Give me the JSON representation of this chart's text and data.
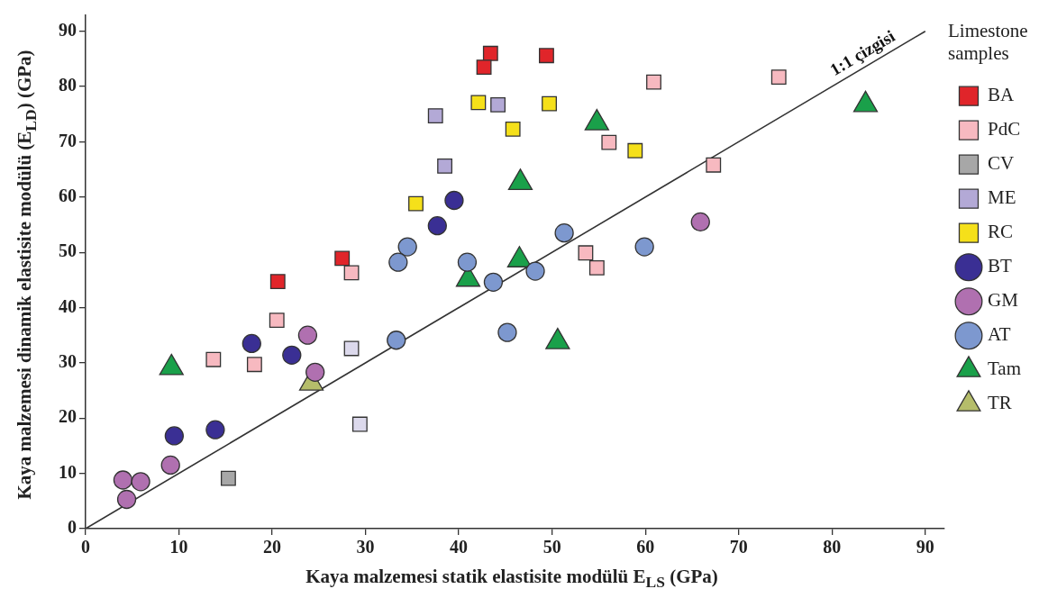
{
  "chart_data": {
    "type": "scatter",
    "xlabel": "Kaya malzemesi statik elastisite modülü E$_{LS}$ (GPa)",
    "ylabel": "Kaya malzemesi dinamik elastisite modülü (E$_{LD}$) (GPa)",
    "legend_title": "Limestone samples",
    "legend": "right",
    "grid": false,
    "xlim": [
      0,
      92
    ],
    "ylim": [
      0,
      93
    ],
    "xticks": [
      0,
      10,
      20,
      30,
      40,
      50,
      60,
      70,
      80,
      90
    ],
    "yticks": [
      0,
      10,
      20,
      30,
      40,
      50,
      60,
      70,
      80,
      90
    ],
    "annotations": [
      {
        "text": "1:1 çizgisi",
        "x": 84,
        "y": 84
      }
    ],
    "series": [
      {
        "type": "line",
        "marker": "none",
        "line_style": "solid",
        "color": "#333333",
        "x": [
          0,
          90
        ],
        "values": [
          0,
          90
        ]
      },
      {
        "name": "BA",
        "marker": "square",
        "color": "#e0252a",
        "x": [
          43.4,
          42.7,
          49.4,
          27.5,
          20.6
        ],
        "values": [
          86.0,
          83.5,
          85.6,
          48.9,
          44.7
        ]
      },
      {
        "name": "PdC",
        "marker": "square",
        "color": "#f7b9c0",
        "x": [
          28.5,
          20.5,
          13.7,
          18.1,
          53.6,
          54.8,
          60.9,
          74.3,
          56.1,
          67.3
        ],
        "values": [
          46.3,
          37.7,
          30.6,
          29.7,
          49.9,
          47.2,
          80.8,
          81.7,
          69.9,
          65.8
        ]
      },
      {
        "name": "CV",
        "marker": "square",
        "color": "#a7a7a7",
        "x": [
          15.3
        ],
        "values": [
          9.1
        ]
      },
      {
        "name": "ME",
        "marker": "square",
        "color": "#b3a9d6",
        "colors": [
          "#b3a9d6",
          "#b3a9d6",
          "#b3a9d6",
          "#dcd9ec",
          "#dcd9ec"
        ],
        "x": [
          37.5,
          44.2,
          38.5,
          28.5,
          29.4
        ],
        "values": [
          74.7,
          76.7,
          65.6,
          32.6,
          18.9
        ]
      },
      {
        "name": "RC",
        "marker": "square",
        "color": "#f5e01a",
        "x": [
          42.1,
          49.7,
          45.8,
          35.4,
          58.9
        ],
        "values": [
          77.1,
          76.9,
          72.3,
          58.8,
          68.4
        ]
      },
      {
        "name": "BT",
        "marker": "circle",
        "color": "#3a2f94",
        "x": [
          39.5,
          37.7,
          17.8,
          22.1,
          9.5,
          13.9
        ],
        "values": [
          59.4,
          54.8,
          33.5,
          31.4,
          16.8,
          17.9
        ]
      },
      {
        "name": "GM",
        "marker": "circle",
        "color": "#b070b0",
        "x": [
          23.8,
          24.6,
          9.1,
          4.0,
          5.9,
          4.4,
          65.9
        ],
        "values": [
          35.0,
          28.3,
          11.5,
          8.8,
          8.5,
          5.3,
          55.5
        ]
      },
      {
        "name": "AT",
        "marker": "circle",
        "color": "#7d98cf",
        "x": [
          33.3,
          34.5,
          33.5,
          40.9,
          43.7,
          48.2,
          51.3,
          45.2,
          59.9
        ],
        "values": [
          34.1,
          51.0,
          48.2,
          48.2,
          44.6,
          46.6,
          53.5,
          35.5,
          51.0
        ]
      },
      {
        "name": "Tam",
        "marker": "triangle",
        "color": "#1aa04a",
        "x": [
          9.2,
          46.6,
          54.8,
          41.0,
          46.5,
          50.6,
          83.6
        ],
        "values": [
          29.1,
          62.6,
          73.4,
          45.1,
          48.6,
          33.8,
          76.7
        ]
      },
      {
        "name": "TR",
        "marker": "triangle",
        "color": "#b5bd6a",
        "x": [
          24.2
        ],
        "values": [
          26.3
        ]
      }
    ]
  }
}
